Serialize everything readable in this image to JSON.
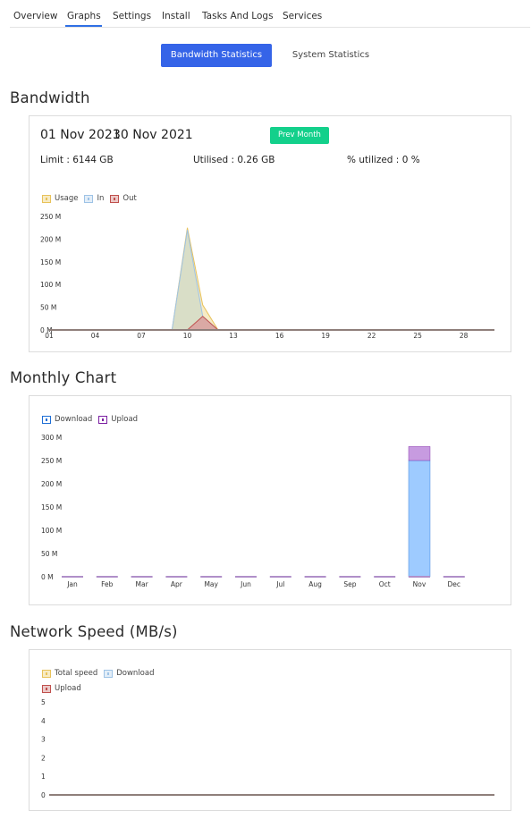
{
  "tabs": [
    {
      "label": "Overview"
    },
    {
      "label": "Graphs"
    },
    {
      "label": "Settings"
    },
    {
      "label": "Install"
    },
    {
      "label": "Tasks And Logs"
    },
    {
      "label": "Services"
    }
  ],
  "active_tab": "Graphs",
  "stat_buttons": {
    "bandwidth": "Bandwidth Statistics",
    "system": "System Statistics"
  },
  "bandwidth": {
    "title": "Bandwidth",
    "start_date": "01 Nov 2021",
    "end_date": "30 Nov 2021",
    "prev_month_label": "Prev Month",
    "limit_text": "Limit : 6144 GB",
    "utilised_text": "Utilised : 0.26 GB",
    "percent_text": "% utilized : 0 %"
  },
  "monthly": {
    "title": "Monthly Chart"
  },
  "network": {
    "title": "Network Speed (MB/s)"
  },
  "chart_data": [
    {
      "type": "area",
      "id": "bandwidth",
      "x_ticks": [
        "01",
        "04",
        "07",
        "10",
        "13",
        "16",
        "19",
        "22",
        "25",
        "28"
      ],
      "x": [
        1,
        2,
        3,
        4,
        5,
        6,
        7,
        8,
        9,
        10,
        11,
        12,
        13,
        14,
        15,
        16,
        17,
        18,
        19,
        20,
        21,
        22,
        23,
        24,
        25,
        26,
        27,
        28,
        29,
        30
      ],
      "y_ticks": [
        "0 M",
        "50 M",
        "100 M",
        "150 M",
        "200 M",
        "250 M"
      ],
      "ylim": [
        0,
        250
      ],
      "series": [
        {
          "name": "Usage",
          "color": "#e8c25a",
          "fill": "#f3e4b3",
          "values": [
            0,
            0,
            0,
            0,
            0,
            0,
            0,
            0,
            0,
            225,
            55,
            0,
            0,
            0,
            0,
            0,
            0,
            0,
            0,
            0,
            0,
            0,
            0,
            0,
            0,
            0,
            0,
            0,
            0,
            0
          ]
        },
        {
          "name": "In",
          "color": "#9ec3e6",
          "fill": "#cfd9c7",
          "values": [
            0,
            0,
            0,
            0,
            0,
            0,
            0,
            0,
            0,
            220,
            30,
            0,
            0,
            0,
            0,
            0,
            0,
            0,
            0,
            0,
            0,
            0,
            0,
            0,
            0,
            0,
            0,
            0,
            0,
            0
          ]
        },
        {
          "name": "Out",
          "color": "#c0504d",
          "fill": "#d9a3a0",
          "values": [
            0,
            0,
            0,
            0,
            0,
            0,
            0,
            0,
            0,
            0,
            30,
            0,
            0,
            0,
            0,
            0,
            0,
            0,
            0,
            0,
            0,
            0,
            0,
            0,
            0,
            0,
            0,
            0,
            0,
            0
          ]
        }
      ]
    },
    {
      "type": "bar",
      "id": "monthly",
      "categories": [
        "Jan",
        "Feb",
        "Mar",
        "Apr",
        "May",
        "Jun",
        "Jul",
        "Aug",
        "Sep",
        "Oct",
        "Nov",
        "Dec"
      ],
      "y_ticks": [
        "0 M",
        "50 M",
        "100 M",
        "150 M",
        "200 M",
        "250 M",
        "300 M"
      ],
      "ylim": [
        0,
        300
      ],
      "series": [
        {
          "name": "Download",
          "color": "#1f6fd6",
          "fill": "#9ecbff",
          "values": [
            0,
            0,
            0,
            0,
            0,
            0,
            0,
            0,
            0,
            0,
            250,
            0
          ]
        },
        {
          "name": "Upload",
          "color": "#7b1fa2",
          "fill": "#c79be0",
          "values": [
            0,
            0,
            0,
            0,
            0,
            0,
            0,
            0,
            0,
            0,
            30,
            0
          ]
        }
      ]
    },
    {
      "type": "line",
      "id": "network",
      "y_ticks": [
        "0",
        "1",
        "2",
        "3",
        "4",
        "5"
      ],
      "ylim": [
        0,
        5
      ],
      "series": [
        {
          "name": "Total speed",
          "color": "#e8c25a",
          "values": [
            0,
            0
          ]
        },
        {
          "name": "Download",
          "color": "#9ec3e6",
          "values": [
            0,
            0
          ]
        },
        {
          "name": "Upload",
          "color": "#c0504d",
          "values": [
            0,
            0
          ]
        }
      ]
    }
  ]
}
